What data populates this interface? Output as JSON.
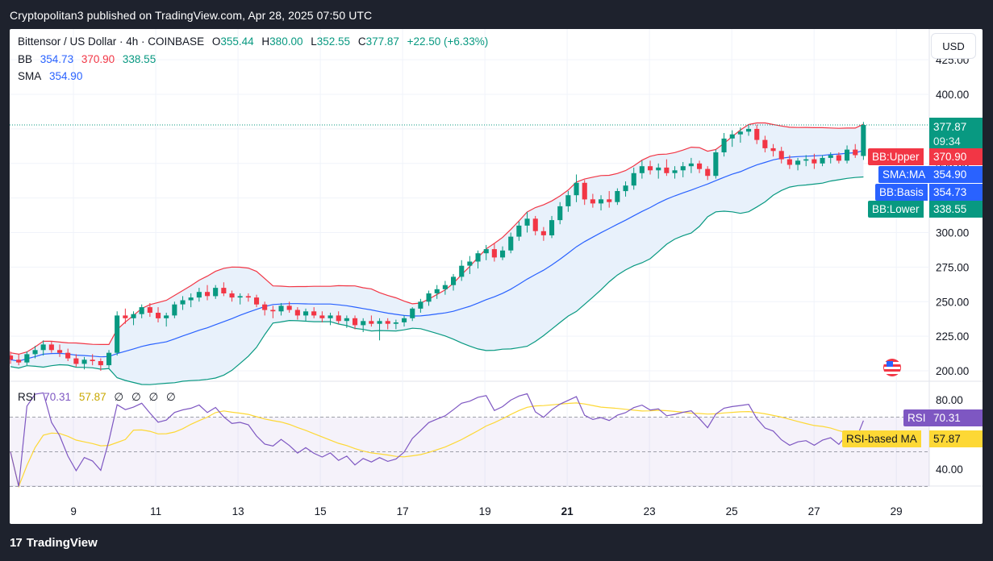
{
  "header": {
    "publisher_line": "Cryptopolitan3 published on TradingView.com, Apr 28, 2025 07:50 UTC"
  },
  "legend": {
    "symbol": "Bittensor / US Dollar · 4h · COINBASE",
    "o_label": "O",
    "o_value": "355.44",
    "h_label": "H",
    "h_value": "380.00",
    "l_label": "L",
    "l_value": "352.55",
    "c_label": "C",
    "c_value": "377.87",
    "change": "+22.50 (+6.33%)",
    "bb_label": "BB",
    "bb_basis": "354.73",
    "bb_upper": "370.90",
    "bb_lower": "338.55",
    "sma_label": "SMA",
    "sma_value": "354.90",
    "rsi_label": "RSI",
    "rsi_value": "70.31",
    "rsi_ma_value": "57.87",
    "rsi_empty": [
      "∅",
      "∅",
      "∅",
      "∅"
    ]
  },
  "currency": "USD",
  "price_tags": {
    "last_price": "377.87",
    "countdown": "09:34",
    "bb_upper_label": "BB:Upper",
    "bb_upper_value": "370.90",
    "sma_label": "SMA:MA",
    "sma_value": "354.90",
    "bb_basis_label": "BB:Basis",
    "bb_basis_value": "354.73",
    "bb_lower_label": "BB:Lower",
    "bb_lower_value": "338.55",
    "rsi_label": "RSI",
    "rsi_value": "70.31",
    "rsi_ma_label": "RSI-based MA",
    "rsi_ma_value": "57.87"
  },
  "colors": {
    "up": "#089981",
    "down": "#f23645",
    "bb_upper": "#f23645",
    "bb_basis": "#2962ff",
    "bb_lower": "#089981",
    "band_fill": "#e8f1fb",
    "rsi": "#7e57c2",
    "rsi_ma": "#fdd835"
  },
  "footer": {
    "brand": "TradingView"
  },
  "chart_data": [
    {
      "type": "candlestick",
      "timeframe": "4h",
      "x_ticks": [
        "9",
        "11",
        "13",
        "15",
        "17",
        "19",
        "21",
        "23",
        "25",
        "27",
        "29"
      ],
      "x_tick_days": [
        9,
        11,
        13,
        15,
        17,
        19,
        21,
        23,
        25,
        27,
        29
      ],
      "x_range_days": [
        7.45,
        29.8
      ],
      "y_ticks": [
        "200.00",
        "225.00",
        "250.00",
        "275.00",
        "300.00",
        "325.00",
        "350.00",
        "375.00",
        "400.00",
        "425.00"
      ],
      "y_range": [
        197,
        430
      ],
      "last_close": 377.87,
      "ohlc": [
        [
          211,
          214,
          205,
          208
        ],
        [
          208,
          212,
          204,
          206
        ],
        [
          206,
          214,
          204,
          212
        ],
        [
          212,
          218,
          209,
          215
        ],
        [
          215,
          222,
          211,
          219
        ],
        [
          219,
          221,
          213,
          215
        ],
        [
          215,
          219,
          210,
          213
        ],
        [
          213,
          216,
          207,
          209
        ],
        [
          209,
          212,
          203,
          205
        ],
        [
          205,
          210,
          201,
          208
        ],
        [
          208,
          212,
          204,
          207
        ],
        [
          207,
          209,
          200,
          204
        ],
        [
          204,
          215,
          202,
          213
        ],
        [
          213,
          243,
          211,
          240
        ],
        [
          240,
          245,
          234,
          238
        ],
        [
          238,
          243,
          233,
          241
        ],
        [
          241,
          248,
          238,
          246
        ],
        [
          246,
          249,
          239,
          242
        ],
        [
          242,
          246,
          235,
          238
        ],
        [
          238,
          242,
          232,
          240
        ],
        [
          240,
          250,
          238,
          248
        ],
        [
          248,
          254,
          244,
          251
        ],
        [
          251,
          256,
          246,
          253
        ],
        [
          253,
          260,
          250,
          257
        ],
        [
          257,
          262,
          251,
          254
        ],
        [
          254,
          262,
          252,
          260
        ],
        [
          260,
          264,
          254,
          256
        ],
        [
          256,
          258,
          250,
          253
        ],
        [
          253,
          256,
          248,
          254
        ],
        [
          254,
          256,
          250,
          253
        ],
        [
          253,
          255,
          246,
          248
        ],
        [
          248,
          250,
          240,
          244
        ],
        [
          244,
          247,
          238,
          243
        ],
        [
          243,
          249,
          240,
          247
        ],
        [
          247,
          250,
          242,
          244
        ],
        [
          244,
          246,
          237,
          240
        ],
        [
          240,
          245,
          236,
          243
        ],
        [
          243,
          246,
          238,
          240
        ],
        [
          240,
          243,
          235,
          238
        ],
        [
          238,
          242,
          233,
          240
        ],
        [
          240,
          243,
          234,
          236
        ],
        [
          236,
          240,
          231,
          238
        ],
        [
          238,
          240,
          230,
          233
        ],
        [
          233,
          238,
          228,
          236
        ],
        [
          236,
          240,
          232,
          234
        ],
        [
          234,
          238,
          222,
          236
        ],
        [
          236,
          238,
          230,
          234
        ],
        [
          234,
          237,
          230,
          235
        ],
        [
          235,
          240,
          232,
          238
        ],
        [
          238,
          246,
          236,
          245
        ],
        [
          245,
          252,
          242,
          250
        ],
        [
          250,
          258,
          247,
          256
        ],
        [
          256,
          262,
          252,
          259
        ],
        [
          259,
          265,
          255,
          262
        ],
        [
          262,
          270,
          258,
          268
        ],
        [
          268,
          280,
          265,
          276
        ],
        [
          276,
          283,
          270,
          279
        ],
        [
          279,
          287,
          274,
          285
        ],
        [
          285,
          291,
          280,
          288
        ],
        [
          288,
          292,
          279,
          282
        ],
        [
          282,
          290,
          280,
          287
        ],
        [
          287,
          300,
          285,
          297
        ],
        [
          297,
          308,
          294,
          305
        ],
        [
          305,
          315,
          300,
          310
        ],
        [
          310,
          312,
          298,
          301
        ],
        [
          301,
          304,
          294,
          298
        ],
        [
          298,
          312,
          296,
          309
        ],
        [
          309,
          322,
          306,
          319
        ],
        [
          319,
          330,
          315,
          327
        ],
        [
          327,
          342,
          322,
          336
        ],
        [
          336,
          338,
          320,
          324
        ],
        [
          324,
          328,
          318,
          321
        ],
        [
          321,
          327,
          316,
          324
        ],
        [
          324,
          330,
          318,
          322
        ],
        [
          322,
          332,
          320,
          330
        ],
        [
          330,
          337,
          326,
          334
        ],
        [
          334,
          347,
          331,
          343
        ],
        [
          343,
          352,
          339,
          348
        ],
        [
          348,
          352,
          342,
          345
        ],
        [
          345,
          350,
          339,
          347
        ],
        [
          347,
          353,
          341,
          343
        ],
        [
          343,
          348,
          339,
          345
        ],
        [
          345,
          351,
          340,
          348
        ],
        [
          348,
          354,
          343,
          350
        ],
        [
          350,
          352,
          343,
          346
        ],
        [
          346,
          348,
          338,
          341
        ],
        [
          341,
          360,
          339,
          358
        ],
        [
          358,
          372,
          355,
          368
        ],
        [
          368,
          374,
          362,
          371
        ],
        [
          371,
          376,
          365,
          373
        ],
        [
          373,
          378,
          370,
          375
        ],
        [
          375,
          378,
          364,
          367
        ],
        [
          367,
          370,
          358,
          361
        ],
        [
          361,
          364,
          355,
          359
        ],
        [
          359,
          362,
          350,
          353
        ],
        [
          353,
          356,
          346,
          349
        ],
        [
          349,
          354,
          345,
          352
        ],
        [
          352,
          356,
          348,
          353
        ],
        [
          353,
          357,
          346,
          350
        ],
        [
          350,
          356,
          348,
          354
        ],
        [
          354,
          358,
          350,
          356
        ],
        [
          356,
          358,
          350,
          352
        ],
        [
          352,
          363,
          350,
          360
        ],
        [
          360,
          364,
          354,
          356
        ],
        [
          355.44,
          380,
          352.55,
          377.87
        ]
      ],
      "indicators": {
        "bb_length": 20,
        "sma_length": 20,
        "bb_upper_last": 370.9,
        "bb_basis_last": 354.73,
        "bb_lower_last": 338.55,
        "sma_last": 354.9
      }
    },
    {
      "type": "line",
      "title": "RSI",
      "y_ticks": [
        "40.00",
        "80.00"
      ],
      "y_range": [
        27,
        84
      ],
      "overbought": 70,
      "middle": 50,
      "oversold": 30,
      "series": [
        {
          "name": "RSI",
          "last": 70.31
        },
        {
          "name": "RSI-based MA",
          "last": 57.87
        }
      ]
    }
  ]
}
